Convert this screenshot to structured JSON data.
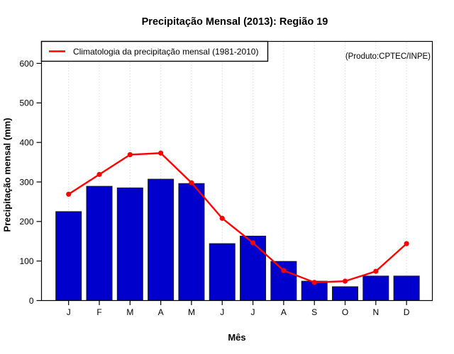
{
  "colors": {
    "bar_fill": "#0000CD",
    "bar_border": "#1A1A1A",
    "line": "#FF0000",
    "grid": "#DCDCDC",
    "axis": "#000000",
    "watermark_text": "#7F7F7F",
    "legend_border": "#000000",
    "legend_bg": "#FFFFFF"
  },
  "chart_data": {
    "type": "bar",
    "title": "Precipitação Mensal (2013): Região 19",
    "xlabel": "Mês",
    "ylabel": "Precipitação mensal (mm)",
    "watermark": "(Produto:CPTEC/INPE)",
    "categories": [
      "J",
      "F",
      "M",
      "A",
      "M",
      "J",
      "J",
      "A",
      "S",
      "O",
      "N",
      "D"
    ],
    "series": [
      {
        "name": "Precipitação mensal (2013)",
        "type": "bar",
        "color": "#0000CD",
        "values": [
          225,
          289,
          285,
          307,
          296,
          144,
          163,
          99,
          49,
          35,
          62,
          62
        ]
      },
      {
        "name": "Climatologia da precipitação mensal (1981-2010)",
        "type": "line",
        "color": "#FF0000",
        "values": [
          269,
          319,
          369,
          373,
          298,
          208,
          146,
          76,
          46,
          49,
          74,
          144
        ]
      }
    ],
    "ylim": [
      0,
      600
    ],
    "yticks": [
      0,
      100,
      200,
      300,
      400,
      500,
      600
    ],
    "grid": "vertical-dotted",
    "legend_position": "top-left"
  }
}
